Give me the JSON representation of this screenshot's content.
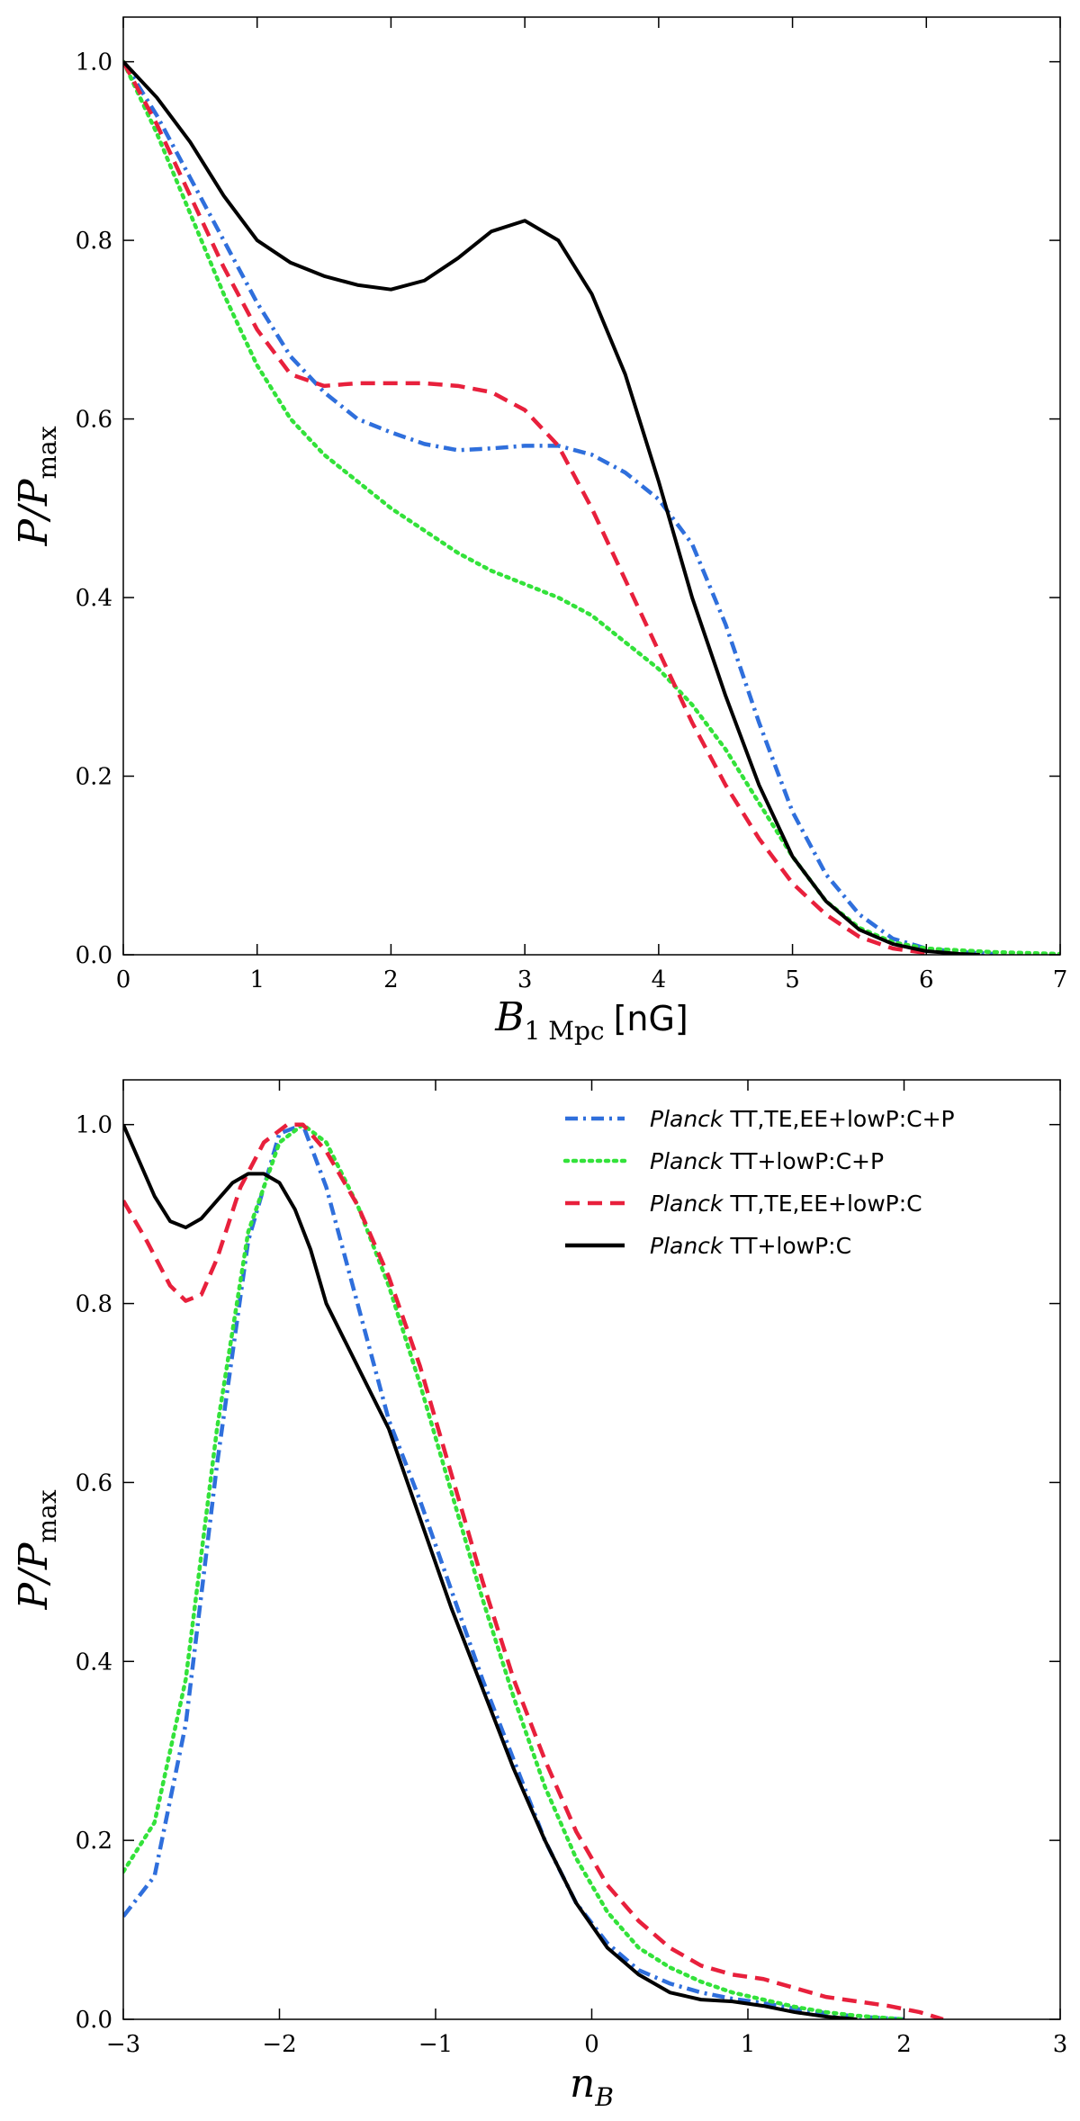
{
  "chart_data": [
    {
      "type": "line",
      "xlabel": "B",
      "xlabel_sub": "1 Mpc",
      "xlabel_unit": "[nG]",
      "ylabel": "P/P",
      "ylabel_sub": "max",
      "xlim": [
        0,
        7
      ],
      "ylim": [
        0,
        1.05
      ],
      "xticks": [
        "0",
        "1",
        "2",
        "3",
        "4",
        "5",
        "6",
        "7"
      ],
      "yticks": [
        "0.0",
        "0.2",
        "0.4",
        "0.6",
        "0.8",
        "1.0"
      ],
      "grid": false,
      "series": [
        {
          "name": "Planck TT,TE,EE+lowP:C+P",
          "color": "#2f6fdc",
          "dash": "dashdot",
          "x": [
            0,
            0.25,
            0.5,
            0.75,
            1.0,
            1.25,
            1.5,
            1.75,
            2.0,
            2.25,
            2.5,
            2.75,
            3.0,
            3.25,
            3.5,
            3.75,
            4.0,
            4.25,
            4.5,
            4.75,
            5.0,
            5.25,
            5.5,
            5.75,
            6.0,
            6.25,
            6.5
          ],
          "y": [
            1.0,
            0.94,
            0.87,
            0.8,
            0.73,
            0.67,
            0.63,
            0.6,
            0.585,
            0.572,
            0.565,
            0.567,
            0.57,
            0.57,
            0.56,
            0.54,
            0.51,
            0.46,
            0.37,
            0.26,
            0.16,
            0.09,
            0.045,
            0.018,
            0.007,
            0.003,
            0.001
          ]
        },
        {
          "name": "Planck TT+lowP:C+P",
          "color": "#33e23a",
          "dash": "dotted",
          "x": [
            0,
            0.25,
            0.5,
            0.75,
            1.0,
            1.25,
            1.5,
            1.75,
            2.0,
            2.25,
            2.5,
            2.75,
            3.0,
            3.25,
            3.5,
            3.75,
            4.0,
            4.25,
            4.5,
            4.75,
            5.0,
            5.25,
            5.5,
            5.75,
            6.0,
            6.5,
            7.0
          ],
          "y": [
            1.0,
            0.92,
            0.83,
            0.74,
            0.66,
            0.6,
            0.56,
            0.53,
            0.5,
            0.475,
            0.45,
            0.43,
            0.415,
            0.4,
            0.38,
            0.35,
            0.32,
            0.28,
            0.23,
            0.17,
            0.11,
            0.06,
            0.03,
            0.014,
            0.007,
            0.003,
            0.001
          ]
        },
        {
          "name": "Planck TT,TE,EE+lowP:C",
          "color": "#e8203c",
          "dash": "dashed",
          "x": [
            0,
            0.25,
            0.5,
            0.75,
            1.0,
            1.25,
            1.5,
            1.75,
            2.0,
            2.25,
            2.5,
            2.75,
            3.0,
            3.25,
            3.5,
            3.75,
            4.0,
            4.25,
            4.5,
            4.75,
            5.0,
            5.25,
            5.5,
            5.75,
            6.0
          ],
          "y": [
            1.0,
            0.93,
            0.85,
            0.77,
            0.7,
            0.65,
            0.637,
            0.64,
            0.64,
            0.64,
            0.637,
            0.63,
            0.61,
            0.57,
            0.5,
            0.42,
            0.34,
            0.26,
            0.19,
            0.13,
            0.08,
            0.045,
            0.02,
            0.007,
            0.002
          ]
        },
        {
          "name": "Planck TT+lowP:C",
          "color": "#000000",
          "dash": "solid",
          "x": [
            0,
            0.25,
            0.5,
            0.75,
            1.0,
            1.25,
            1.5,
            1.75,
            2.0,
            2.25,
            2.5,
            2.75,
            3.0,
            3.25,
            3.5,
            3.75,
            4.0,
            4.25,
            4.5,
            4.75,
            5.0,
            5.25,
            5.5,
            5.75,
            6.0,
            6.25,
            6.4
          ],
          "y": [
            1.0,
            0.96,
            0.91,
            0.85,
            0.8,
            0.775,
            0.76,
            0.75,
            0.745,
            0.755,
            0.78,
            0.81,
            0.822,
            0.8,
            0.74,
            0.65,
            0.53,
            0.4,
            0.29,
            0.19,
            0.11,
            0.06,
            0.028,
            0.012,
            0.004,
            0.001,
            0.0
          ]
        }
      ]
    },
    {
      "type": "line",
      "xlabel": "n",
      "xlabel_sub": "B",
      "ylabel": "P/P",
      "ylabel_sub": "max",
      "xlim": [
        -3,
        3
      ],
      "ylim": [
        0,
        1.05
      ],
      "xticks": [
        "−3",
        "−2",
        "−1",
        "0",
        "1",
        "2",
        "3"
      ],
      "yticks": [
        "0.0",
        "0.2",
        "0.4",
        "0.6",
        "0.8",
        "1.0"
      ],
      "grid": false,
      "legend_position": "top-right",
      "legend": [
        {
          "italic": "Planck",
          "rest": " TT,TE,EE+lowP:C+P"
        },
        {
          "italic": "Planck",
          "rest": " TT+lowP:C+P"
        },
        {
          "italic": "Planck",
          "rest": " TT,TE,EE+lowP:C"
        },
        {
          "italic": "Planck",
          "rest": " TT+lowP:C"
        }
      ],
      "series": [
        {
          "name": "Planck TT,TE,EE+lowP:C+P",
          "color": "#2f6fdc",
          "dash": "dashdot",
          "x": [
            -3.0,
            -2.8,
            -2.6,
            -2.4,
            -2.2,
            -2.0,
            -1.85,
            -1.7,
            -1.5,
            -1.3,
            -1.1,
            -0.9,
            -0.7,
            -0.5,
            -0.3,
            -0.1,
            0.1,
            0.3,
            0.5,
            0.7,
            0.9,
            1.1,
            1.3,
            1.5,
            1.7,
            2.0
          ],
          "y": [
            0.115,
            0.16,
            0.33,
            0.62,
            0.87,
            0.99,
            1.0,
            0.93,
            0.8,
            0.67,
            0.58,
            0.48,
            0.38,
            0.29,
            0.2,
            0.13,
            0.085,
            0.055,
            0.04,
            0.03,
            0.023,
            0.018,
            0.012,
            0.007,
            0.003,
            0.0
          ]
        },
        {
          "name": "Planck TT+lowP:C+P",
          "color": "#33e23a",
          "dash": "dotted",
          "x": [
            -3.0,
            -2.8,
            -2.6,
            -2.4,
            -2.2,
            -2.0,
            -1.85,
            -1.7,
            -1.5,
            -1.3,
            -1.1,
            -0.9,
            -0.7,
            -0.5,
            -0.3,
            -0.1,
            0.1,
            0.3,
            0.5,
            0.7,
            0.9,
            1.1,
            1.3,
            1.5,
            1.7,
            2.0
          ],
          "y": [
            0.165,
            0.22,
            0.38,
            0.66,
            0.88,
            0.98,
            1.0,
            0.98,
            0.91,
            0.82,
            0.71,
            0.59,
            0.47,
            0.36,
            0.26,
            0.18,
            0.12,
            0.08,
            0.058,
            0.042,
            0.03,
            0.022,
            0.014,
            0.008,
            0.004,
            0.0
          ]
        },
        {
          "name": "Planck TT,TE,EE+lowP:C",
          "color": "#e8203c",
          "dash": "dashed",
          "x": [
            -3.0,
            -2.85,
            -2.7,
            -2.6,
            -2.5,
            -2.4,
            -2.25,
            -2.1,
            -1.95,
            -1.85,
            -1.7,
            -1.5,
            -1.3,
            -1.1,
            -0.9,
            -0.7,
            -0.5,
            -0.3,
            -0.1,
            0.1,
            0.3,
            0.5,
            0.7,
            0.9,
            1.1,
            1.3,
            1.5,
            1.7,
            1.9,
            2.1,
            2.25
          ],
          "y": [
            0.915,
            0.87,
            0.82,
            0.803,
            0.81,
            0.85,
            0.93,
            0.98,
            1.0,
            1.0,
            0.97,
            0.91,
            0.83,
            0.73,
            0.61,
            0.49,
            0.38,
            0.29,
            0.21,
            0.15,
            0.11,
            0.08,
            0.06,
            0.05,
            0.045,
            0.035,
            0.025,
            0.02,
            0.015,
            0.008,
            0.0
          ]
        },
        {
          "name": "Planck TT+lowP:C",
          "color": "#000000",
          "dash": "solid",
          "x": [
            -3.0,
            -2.9,
            -2.8,
            -2.7,
            -2.6,
            -2.5,
            -2.4,
            -2.3,
            -2.2,
            -2.1,
            -2.0,
            -1.9,
            -1.8,
            -1.7,
            -1.5,
            -1.3,
            -1.1,
            -0.9,
            -0.7,
            -0.5,
            -0.3,
            -0.1,
            0.1,
            0.3,
            0.5,
            0.7,
            0.9,
            1.1,
            1.3,
            1.5,
            1.7
          ],
          "y": [
            1.0,
            0.96,
            0.92,
            0.892,
            0.885,
            0.895,
            0.915,
            0.935,
            0.945,
            0.945,
            0.935,
            0.905,
            0.86,
            0.8,
            0.73,
            0.66,
            0.56,
            0.46,
            0.37,
            0.28,
            0.2,
            0.13,
            0.08,
            0.05,
            0.03,
            0.022,
            0.02,
            0.015,
            0.008,
            0.003,
            0.0
          ]
        }
      ]
    }
  ]
}
